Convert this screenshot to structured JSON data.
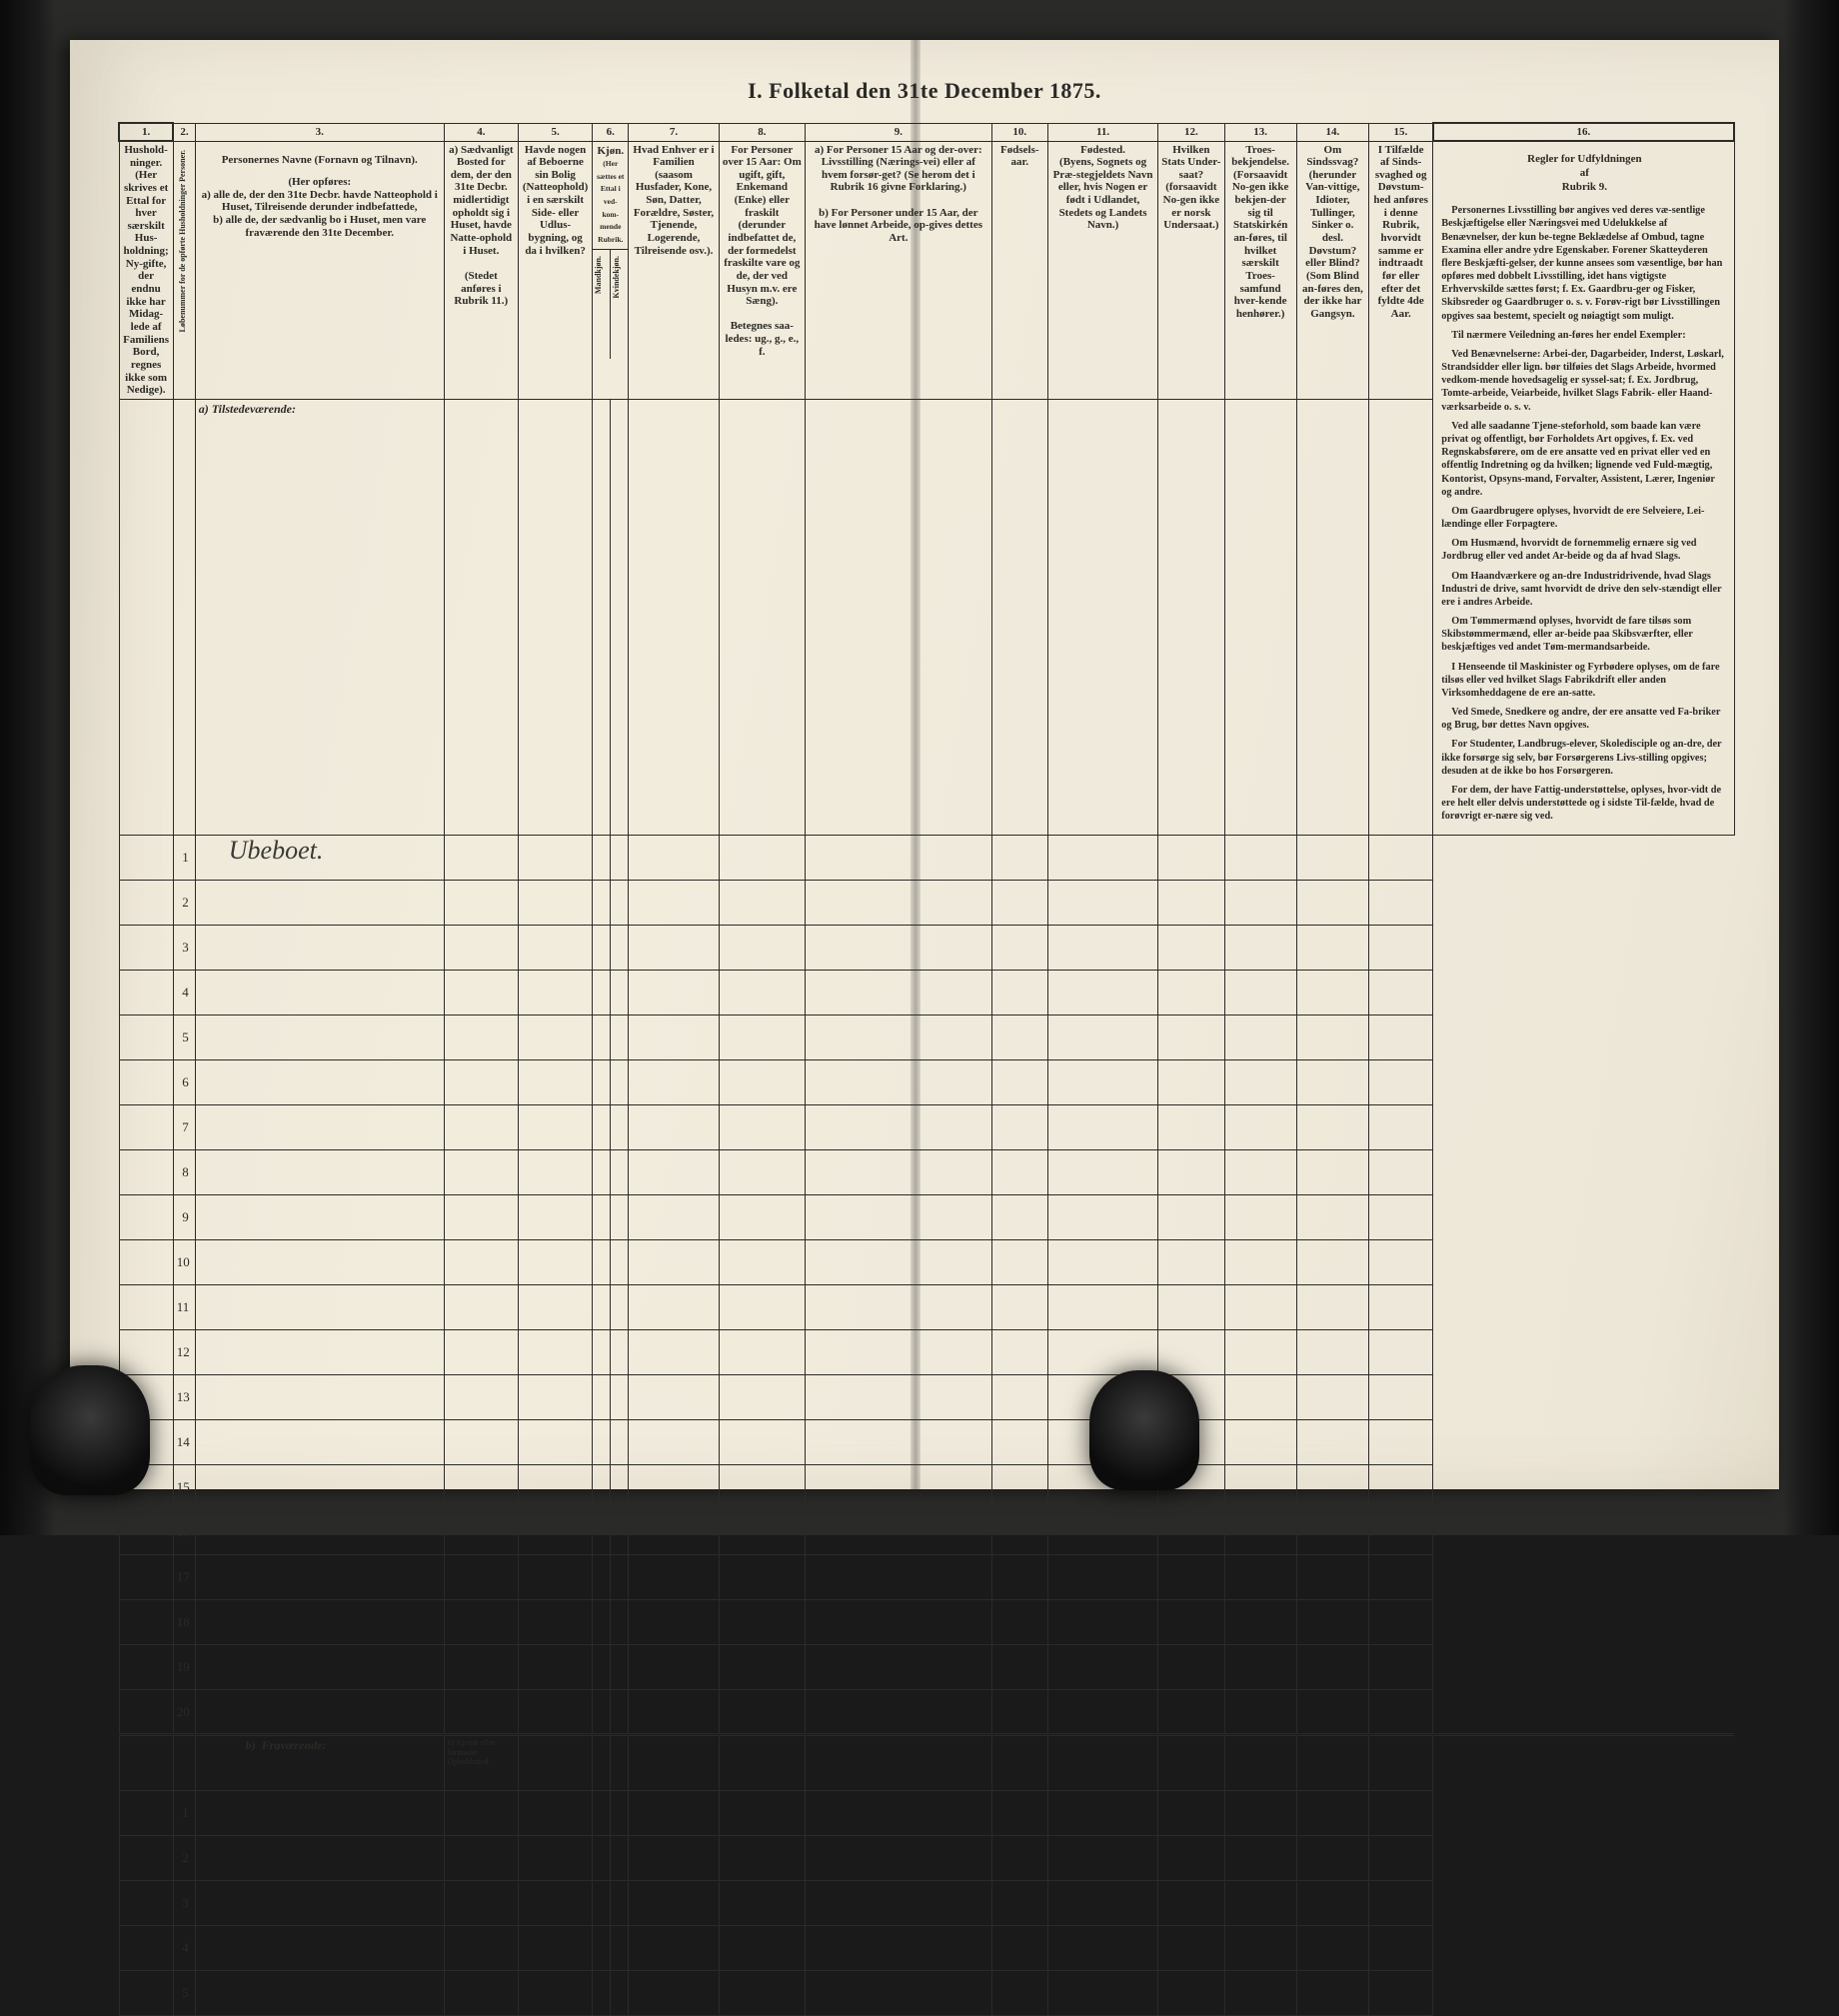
{
  "title": "I.  Folketal   den 31te December 1875.",
  "columns": {
    "c1": "1.",
    "c2": "2.",
    "c3": "3.",
    "c4": "4.",
    "c5": "5.",
    "c6": "6.",
    "c7": "7.",
    "c8": "8.",
    "c9": "9.",
    "c10": "10.",
    "c11": "11.",
    "c12": "12.",
    "c13": "13.",
    "c14": "14.",
    "c15": "15.",
    "c16": "16."
  },
  "headers": {
    "h1": "Hushold-ninger.",
    "h1_note": "(Her skrives et Ettal for hver særskilt Hus-holdning; Ny-gifte, der endnu ikke har Midag-lede af Familiens Bord, regnes ikke som Nedige).",
    "h2_vert": "Løbenummer for de opførte Husholdninger Personer.",
    "h3_title": "Personernes Navne (Fornavn og Tilnavn).",
    "h3_sub": "(Her opføres:\na) alle de, der den 31te Decbr. havde Natteophold i Huset, Tilreisende derunder indbefattede,\nb) alle de, der sædvanlig bo i Huset, men vare fraværende den 31te December.",
    "h4_a": "a) Sædvanligt Bosted for dem, der den 31te Decbr. midlertidigt opholdt sig i Huset, havde Natte-ophold i Huset.",
    "h4_note": "(Stedet anføres i Rubrik 11.)",
    "h5": "Havde nogen af Beboerne sin Bolig (Natteophold) i en særskilt Side- eller Udlus-bygning, og da i hvilken?",
    "h6": "Kjøn.",
    "h6_note": "(Her sættes et Ettal i ved-kom-mende Rubrik.",
    "h6_m": "Mandkjøn.",
    "h6_k": "Kvindekjøn.",
    "h7": "Hvad Enhver er i Familien",
    "h7_note": "(saasom Husfader, Kone, Søn, Datter, Forældre, Søster, Tjenende, Logerende, Tilreisende osv.).",
    "h8": "For Personer over 15 Aar: Om ugift, gift, Enkemand (Enke) eller fraskilt (derunder indbefattet de, der formedelst fraskilte vare og de, der ved Husyn m.v. ere Sæng).",
    "h8_note": "Betegnes saa-ledes: ug., g., e., f.",
    "h9_a": "a) For Personer 15 Aar og der-over: Livsstilling (Nærings-vei) eller af hvem forsør-get? (Se herom det i Rubrik 16 givne Forklaring.)",
    "h9_b": "b) For Personer under 15 Aar, der have lønnet Arbeide, op-gives dettes Art.",
    "h10": "Fødsels-aar.",
    "h11": "Fødested.",
    "h11_note": "(Byens, Sognets og Præ-stegjeldets Navn eller, hvis Nogen er født i Udlandet, Stedets og Landets Navn.)",
    "h12": "Hvilken Stats Under-saat?",
    "h12_note": "(forsaavidt No-gen ikke er norsk Undersaat.)",
    "h13": "Troes-bekjendelse.",
    "h13_note": "(Forsaavidt No-gen ikke bekjen-der sig til Statskirkén an-føres, til hvilket særskilt Troes-samfund hver-kende henhører.)",
    "h14": "Om Sindssvag?",
    "h14_note": "(herunder Van-vittige, Idioter, Tullinger, Sinker o. desl.",
    "h14_note2": "Døvstum? eller Blind? (Som Blind an-føres den, der ikke har Gangsyn.",
    "h15": "I Tilfælde af Sinds-svaghed og Døvstum-hed anføres i denne Rubrik, hvorvidt samme er indtraadt før eller efter det fyldte 4de Aar.",
    "h16_title": "Regler for Udfyldningen\naf\nRubrik 9."
  },
  "sections": {
    "a": "a) Tilstedeværende:",
    "b": "Fraværende:",
    "b_col4": "b) Kjendt eller formodet Opholdssted.",
    "handwritten": "Ubeboet."
  },
  "rows_a": [
    1,
    2,
    3,
    4,
    5,
    6,
    7,
    8,
    9,
    10,
    11,
    12,
    13,
    14,
    15,
    16,
    17,
    18,
    19,
    20
  ],
  "rows_b": [
    1,
    2,
    3,
    4,
    5
  ],
  "rules": {
    "title": "Personernes Livsstilling",
    "p1": "bør angives ved deres væ-sentlige Beskjæftigelse eller Næringsvei med Udelukkelse af Benævnelser, der kun be-tegne Beklædelse af Ombud, tagne Examina eller andre ydre Egenskaber. Forener Skatteyderen flere Beskjæfti-gelser, der kunne ansees som væsentlige, bør han opføres med dobbelt Livsstilling, idet hans vigtigste Erhvervskilde sættes først; f. Ex. Gaardbru-ger og Fisker, Skibsreder og Gaardbruger o. s. v. Forøv-rigt bør Livsstillingen opgives saa bestemt, specielt og nøiagtigt som muligt.",
    "p2": "Til nærmere Veiledning an-føres her endel Exempler:",
    "p3": "Ved Benævnelserne: Arbei-der, Dagarbeider, Inderst, Løskarl, Strandsidder eller lign. bør tilføies det Slags Arbeide, hvormed vedkom-mende hovedsagelig er syssel-sat; f. Ex. Jordbrug, Tomte-arbeide, Veiarbeide, hvilket Slags Fabrik- eller Haand-værksarbeide o. s. v.",
    "p4": "Ved alle saadanne Tjene-steforhold, som baade kan være privat og offentligt, bør Forholdets Art opgives, f. Ex. ved Regnskabsførere, om de ere ansatte ved en privat eller ved en offentlig Indretning og da hvilken; lignende ved Fuld-mægtig, Kontorist, Opsyns-mand, Forvalter, Assistent, Lærer, Ingeniør og andre.",
    "p5": "Om Gaardbrugere oplyses, hvorvidt de ere Selveiere, Lei-lændinge eller Forpagtere.",
    "p6": "Om Husmænd, hvorvidt de fornemmelig ernære sig ved Jordbrug eller ved andet Ar-beide og da af hvad Slags.",
    "p7": "Om Haandværkere og an-dre Industridrivende, hvad Slags Industri de drive, samt hvorvidt de drive den selv-stændigt eller ere i andres Arbeide.",
    "p8": "Om Tømmermænd oplyses, hvorvidt de fare tilsøs som Skibstømmermænd, eller ar-beide paa Skibsværfter, eller beskjæftiges ved andet Tøm-mermandsarbeide.",
    "p9": "I Henseende til Maskinister og Fyrbødere oplyses, om de fare tilsøs eller ved hvilket Slags Fabrikdrift eller anden Virksomheddagene de ere an-satte.",
    "p10": "Ved Smede, Snedkere og andre, der ere ansatte ved Fa-briker og Brug, bør dettes Navn opgives.",
    "p11": "For Studenter, Landbrugs-elever, Skoledisciple og an-dre, der ikke forsørge sig selv, bør Forsørgerens Livs-stilling opgives; desuden at de ikke bo hos Forsørgeren.",
    "p12": "For dem, der have Fattig-understøttelse, oplyses, hvor-vidt de ere helt eller delvis understøttede og i sidste Til-fælde, hvad de forøvrigt er-nære sig ved."
  },
  "colors": {
    "ink": "#2b2a26",
    "paper": "#f0eadc"
  }
}
